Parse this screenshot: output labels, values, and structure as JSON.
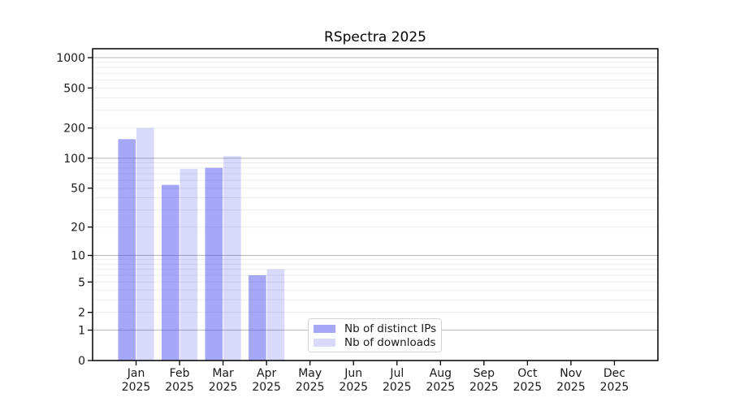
{
  "chart_data": {
    "type": "bar",
    "title": "RSpectra 2025",
    "x": {
      "categories": [
        "Jan",
        "Feb",
        "Mar",
        "Apr",
        "May",
        "Jun",
        "Jul",
        "Aug",
        "Sep",
        "Oct",
        "Nov",
        "Dec"
      ],
      "year": "2025"
    },
    "series": [
      {
        "name": "Nb of distinct IPs",
        "color": "rgba(80,80,240,0.5)",
        "values": [
          155,
          54,
          80,
          6,
          0,
          0,
          0,
          0,
          0,
          0,
          0,
          0
        ]
      },
      {
        "name": "Nb of downloads",
        "color": "rgba(80,80,240,0.22)",
        "values": [
          200,
          78,
          105,
          7,
          0,
          0,
          0,
          0,
          0,
          0,
          0,
          0
        ]
      }
    ],
    "y_axis": {
      "scale": "log1p",
      "tick_labels": [
        0,
        1,
        2,
        5,
        10,
        20,
        50,
        100,
        200,
        500,
        1000
      ],
      "major_grid": [
        1,
        10,
        100,
        1000
      ],
      "range": [
        0,
        1000
      ]
    },
    "legend": {
      "position": "bottom-center",
      "entries": [
        "Nb of distinct IPs",
        "Nb of downloads"
      ]
    },
    "grid": "on"
  },
  "colors": {
    "background": "#ffffff",
    "axis": "#000000",
    "text": "#1a1a1a",
    "major_grid": "#b4b4b4",
    "minor_grid": "#ebebeb",
    "bar_ips": "rgba(80,80,240,0.5)",
    "bar_downloads": "rgba(80,80,240,0.22)",
    "legend_border": "#d4d4d4",
    "legend_bg": "#ffffff"
  }
}
